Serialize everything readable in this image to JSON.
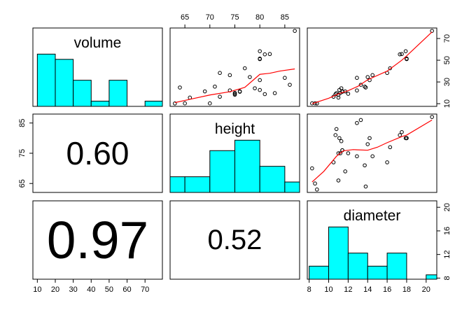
{
  "chart_data": {
    "type": "pairs",
    "variables": [
      "volume",
      "height",
      "diameter"
    ],
    "observations": {
      "volume": [
        10.3,
        10.3,
        10.2,
        16.4,
        18.8,
        19.7,
        15.6,
        18.2,
        22.6,
        19.9,
        24.2,
        21.0,
        21.4,
        21.3,
        19.1,
        22.2,
        33.8,
        27.4,
        25.7,
        24.9,
        34.5,
        31.7,
        36.3,
        38.3,
        42.6,
        55.4,
        55.7,
        58.3,
        51.5,
        51.0,
        77.0
      ],
      "height": [
        70,
        65,
        63,
        72,
        81,
        83,
        66,
        75,
        80,
        75,
        79,
        76,
        76,
        69,
        75,
        74,
        85,
        86,
        71,
        64,
        78,
        80,
        74,
        72,
        77,
        81,
        82,
        80,
        80,
        80,
        87
      ],
      "diameter": [
        8.3,
        8.6,
        8.8,
        10.5,
        10.7,
        10.8,
        11.0,
        11.0,
        11.1,
        11.2,
        11.3,
        11.4,
        11.4,
        11.7,
        12.0,
        12.9,
        12.9,
        13.3,
        13.7,
        13.8,
        14.0,
        14.2,
        14.5,
        16.0,
        16.3,
        17.3,
        17.5,
        17.9,
        18.0,
        18.0,
        20.6
      ]
    },
    "lims": {
      "volume": [
        7.528,
        79.672
      ],
      "height": [
        62.04,
        87.96
      ],
      "diameter": [
        7.808,
        21.092
      ]
    },
    "histograms": [
      {
        "bins": [
          10,
          20,
          30,
          40,
          50,
          60,
          70,
          80
        ],
        "counts": [
          10,
          9,
          5,
          1,
          5,
          0,
          1
        ],
        "color": "#00ffff"
      },
      {
        "bins": [
          60,
          65,
          70,
          75,
          80,
          85,
          90
        ],
        "counts": [
          3,
          3,
          8,
          10,
          5,
          2
        ],
        "color": "#00ffff"
      },
      {
        "bins": [
          8,
          10,
          12,
          14,
          16,
          18,
          20,
          22
        ],
        "counts": [
          3,
          12,
          6,
          3,
          6,
          0,
          1
        ],
        "color": "#00ffff"
      }
    ],
    "smooth": [
      {
        "color": "#ff0000",
        "x": [
          63,
          66,
          70,
          74,
          77,
          80,
          82,
          84,
          87
        ],
        "y": [
          11,
          14,
          18,
          21,
          25,
          37,
          38,
          40,
          42
        ]
      },
      {
        "color": "#ff0000",
        "x": [
          8.3,
          10,
          11,
          12,
          13,
          14,
          16,
          17.5,
          18,
          20.6
        ],
        "y": [
          10,
          15,
          19,
          22,
          26,
          32,
          40,
          50,
          54,
          76
        ]
      },
      {
        "color": "#ff0000",
        "x": [
          8.3,
          9.5,
          10.8,
          11.5,
          12.5,
          14,
          15,
          16,
          17.5,
          18,
          20.6
        ],
        "y": [
          65.5,
          69,
          74,
          75.8,
          76.2,
          76,
          77,
          78.5,
          80.5,
          81,
          86
        ]
      }
    ],
    "correlations": [
      0.6,
      0.97,
      0.52
    ],
    "value_labels": [
      "0.60",
      "0.97",
      "0.52"
    ],
    "axes": [
      {
        "variable": "height",
        "side": "top",
        "ticks": [
          65,
          70,
          75,
          80,
          85
        ]
      },
      {
        "variable": "volume",
        "side": "right",
        "ticks": [
          10,
          30,
          50,
          70
        ]
      },
      {
        "variable": "height",
        "side": "left",
        "ticks": [
          65,
          75,
          85
        ]
      },
      {
        "variable": "diameter",
        "side": "right",
        "ticks": [
          8,
          12,
          16,
          20
        ]
      },
      {
        "variable": "volume",
        "side": "bottom",
        "ticks": [
          10,
          20,
          30,
          40,
          50,
          60,
          70
        ]
      },
      {
        "variable": "diameter",
        "side": "bottom",
        "ticks": [
          8,
          10,
          12,
          14,
          16,
          18,
          20
        ]
      }
    ]
  }
}
